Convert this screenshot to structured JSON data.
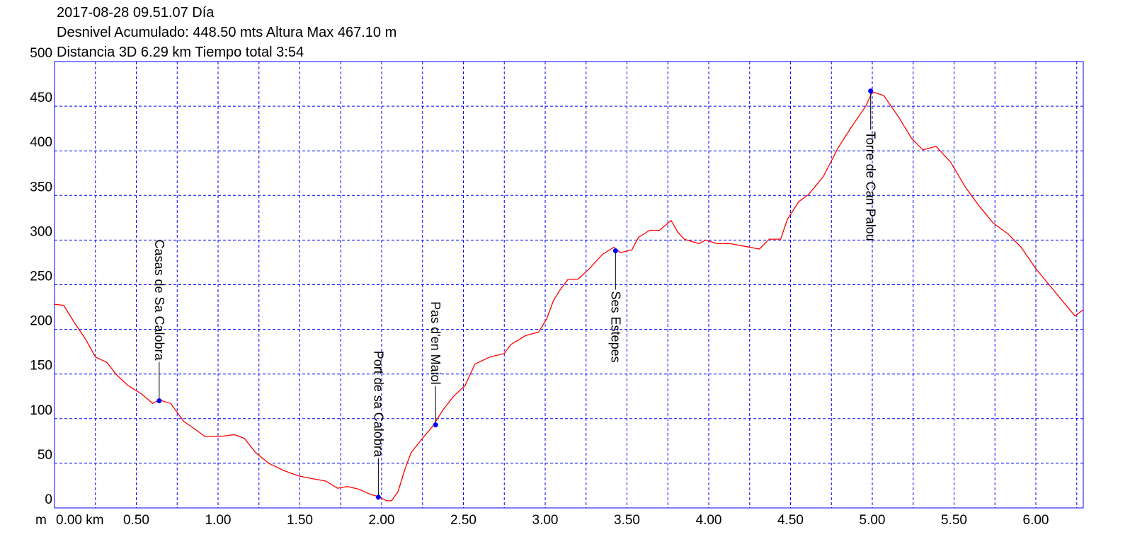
{
  "chart_data": {
    "type": "line",
    "title_lines": [
      "2017-08-28 09.51.07 Día",
      "Desnivel Acumulado: 448.50 mts  Altura Max 467.10 m",
      "Distancia 3D 6.29 km  Tiempo total 3:54"
    ],
    "ylabel": "m",
    "xlim": [
      0,
      6.29
    ],
    "ylim": [
      0,
      500
    ],
    "yticks": [
      0,
      50,
      100,
      150,
      200,
      250,
      300,
      350,
      400,
      450,
      500
    ],
    "xticks": [
      {
        "value": 0,
        "label": "0.00 km"
      },
      {
        "value": 0.5,
        "label": "0.50"
      },
      {
        "value": 1,
        "label": "1.00"
      },
      {
        "value": 1.5,
        "label": "1.50"
      },
      {
        "value": 2,
        "label": "2.00"
      },
      {
        "value": 2.5,
        "label": "2.50"
      },
      {
        "value": 3,
        "label": "3.00"
      },
      {
        "value": 3.5,
        "label": "3.50"
      },
      {
        "value": 4,
        "label": "4.00"
      },
      {
        "value": 4.5,
        "label": "4.50"
      },
      {
        "value": 5,
        "label": "5.00"
      },
      {
        "value": 5.5,
        "label": "5.50"
      },
      {
        "value": 6,
        "label": "6.00"
      }
    ],
    "xminor": [
      0.25,
      0.75,
      1.25,
      1.75,
      2.25,
      2.75,
      3.25,
      3.75,
      4.25,
      4.75,
      5.25,
      5.75,
      6.25
    ],
    "grid": true,
    "grid_color": "#0000ff",
    "axis_color": "#0000ff",
    "series": [
      {
        "color": "#ff0000",
        "x": [
          0,
          0.056,
          0.12,
          0.19,
          0.25,
          0.32,
          0.38,
          0.45,
          0.53,
          0.6,
          0.64,
          0.71,
          0.79,
          0.86,
          0.92,
          1.01,
          1.1,
          1.16,
          1.23,
          1.31,
          1.4,
          1.49,
          1.57,
          1.66,
          1.73,
          1.79,
          1.86,
          1.92,
          1.99,
          2.03,
          2.06,
          2.1,
          2.14,
          2.18,
          2.25,
          2.31,
          2.38,
          2.44,
          2.51,
          2.57,
          2.66,
          2.75,
          2.79,
          2.88,
          2.96,
          3.01,
          3.05,
          3.09,
          3.14,
          3.2,
          3.27,
          3.35,
          3.42,
          3.46,
          3.53,
          3.57,
          3.64,
          3.7,
          3.77,
          3.81,
          3.85,
          3.94,
          3.98,
          4.05,
          4.13,
          4.22,
          4.31,
          4.37,
          4.44,
          4.48,
          4.55,
          4.61,
          4.7,
          4.79,
          4.87,
          4.96,
          5.0,
          5.07,
          5.16,
          5.24,
          5.31,
          5.39,
          5.48,
          5.57,
          5.65,
          5.74,
          5.83,
          5.91,
          6.0,
          6.09,
          6.18,
          6.24,
          6.29
        ],
        "values": [
          228,
          227,
          208,
          189,
          169,
          163,
          149,
          137,
          128,
          117,
          121,
          117,
          97,
          88,
          80,
          80,
          82,
          78,
          62,
          50,
          42,
          36,
          33,
          30,
          22,
          24,
          21,
          16,
          12,
          8,
          8,
          18,
          42,
          62,
          78,
          91,
          111,
          125,
          137,
          161,
          169,
          173,
          183,
          193,
          197,
          212,
          232,
          244,
          256,
          256,
          268,
          284,
          292,
          286,
          289,
          303,
          311,
          311,
          322,
          309,
          301,
          296,
          300,
          296,
          296,
          293,
          290,
          301,
          301,
          323,
          343,
          351,
          371,
          403,
          426,
          450,
          466,
          462,
          438,
          414,
          401,
          405,
          387,
          359,
          339,
          319,
          307,
          292,
          268,
          248,
          228,
          215,
          222
        ]
      }
    ],
    "waypoints": [
      {
        "label": "Casas de Sa Calobra",
        "x": 0.64,
        "y": 120,
        "side": "above"
      },
      {
        "label": "Port de sa Calobra",
        "x": 1.98,
        "y": 12,
        "side": "above"
      },
      {
        "label": "Pas d'en Maiol",
        "x": 2.33,
        "y": 93,
        "side": "above"
      },
      {
        "label": "Ses Estepes",
        "x": 3.43,
        "y": 288,
        "side": "below"
      },
      {
        "label": "Torre de Can Palou",
        "x": 4.99,
        "y": 467,
        "side": "below"
      }
    ],
    "waypoint_color": "#0000ff"
  }
}
